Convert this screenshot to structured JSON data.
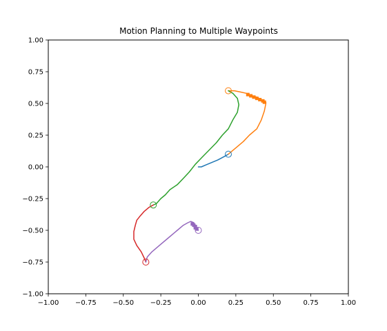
{
  "chart_data": {
    "type": "line",
    "title": "Motion Planning to Multiple Waypoints",
    "xlabel": "",
    "ylabel": "",
    "xlim": [
      -1.0,
      1.0
    ],
    "ylim": [
      -1.0,
      1.0
    ],
    "grid": false,
    "x_ticks": [
      "−1.00",
      "−0.75",
      "−0.50",
      "−0.25",
      "0.00",
      "0.25",
      "0.50",
      "0.75",
      "1.00"
    ],
    "y_ticks": [
      "−1.00",
      "−0.75",
      "−0.50",
      "−0.25",
      "0.00",
      "0.25",
      "0.50",
      "0.75",
      "1.00"
    ],
    "x_tick_values": [
      -1.0,
      -0.75,
      -0.5,
      -0.25,
      0.0,
      0.25,
      0.5,
      0.75,
      1.0
    ],
    "y_tick_values": [
      -1.0,
      -0.75,
      -0.5,
      -0.25,
      0.0,
      0.25,
      0.5,
      0.75,
      1.0
    ],
    "series": [
      {
        "color": "#1f77b4",
        "points": [
          [
            0.0,
            0.0
          ],
          [
            0.02,
            0.0
          ],
          [
            0.05,
            0.015
          ],
          [
            0.09,
            0.035
          ],
          [
            0.13,
            0.055
          ],
          [
            0.17,
            0.08
          ],
          [
            0.2,
            0.1
          ]
        ]
      },
      {
        "color": "#ff7f0e",
        "points": [
          [
            0.2,
            0.1
          ],
          [
            0.25,
            0.15
          ],
          [
            0.3,
            0.2
          ],
          [
            0.34,
            0.25
          ],
          [
            0.39,
            0.3
          ],
          [
            0.42,
            0.37
          ],
          [
            0.44,
            0.44
          ],
          [
            0.45,
            0.5
          ],
          [
            0.45,
            0.51
          ],
          [
            0.44,
            0.52
          ],
          [
            0.42,
            0.53
          ],
          [
            0.39,
            0.55
          ],
          [
            0.36,
            0.56
          ],
          [
            0.32,
            0.58
          ],
          [
            0.28,
            0.59
          ],
          [
            0.24,
            0.6
          ],
          [
            0.2,
            0.6
          ]
        ]
      },
      {
        "color": "#2ca02c",
        "points": [
          [
            0.2,
            0.6
          ],
          [
            0.23,
            0.58
          ],
          [
            0.26,
            0.54
          ],
          [
            0.27,
            0.49
          ],
          [
            0.26,
            0.43
          ],
          [
            0.23,
            0.37
          ],
          [
            0.2,
            0.3
          ],
          [
            0.16,
            0.25
          ],
          [
            0.12,
            0.19
          ],
          [
            0.07,
            0.13
          ],
          [
            0.02,
            0.07
          ],
          [
            -0.02,
            0.02
          ],
          [
            -0.06,
            -0.04
          ],
          [
            -0.1,
            -0.09
          ],
          [
            -0.14,
            -0.14
          ],
          [
            -0.19,
            -0.18
          ],
          [
            -0.22,
            -0.22
          ],
          [
            -0.25,
            -0.25
          ],
          [
            -0.28,
            -0.29
          ],
          [
            -0.3,
            -0.3
          ]
        ]
      },
      {
        "color": "#d62728",
        "points": [
          [
            -0.3,
            -0.3
          ],
          [
            -0.33,
            -0.32
          ],
          [
            -0.36,
            -0.35
          ],
          [
            -0.39,
            -0.39
          ],
          [
            -0.41,
            -0.42
          ],
          [
            -0.42,
            -0.46
          ],
          [
            -0.43,
            -0.51
          ],
          [
            -0.43,
            -0.57
          ],
          [
            -0.41,
            -0.62
          ],
          [
            -0.38,
            -0.67
          ],
          [
            -0.36,
            -0.72
          ],
          [
            -0.35,
            -0.75
          ]
        ]
      },
      {
        "color": "#9467bd",
        "points": [
          [
            -0.35,
            -0.75
          ],
          [
            -0.34,
            -0.71
          ],
          [
            -0.31,
            -0.67
          ],
          [
            -0.26,
            -0.62
          ],
          [
            -0.2,
            -0.56
          ],
          [
            -0.14,
            -0.5
          ],
          [
            -0.1,
            -0.46
          ],
          [
            -0.07,
            -0.44
          ],
          [
            -0.05,
            -0.43
          ],
          [
            -0.03,
            -0.44
          ],
          [
            -0.02,
            -0.46
          ],
          [
            -0.01,
            -0.48
          ],
          [
            0.0,
            -0.5
          ]
        ]
      }
    ],
    "waypoints": [
      {
        "x": 0.2,
        "y": 0.1,
        "color": "#1f77b4"
      },
      {
        "x": 0.2,
        "y": 0.6,
        "color": "#ff7f0e"
      },
      {
        "x": -0.3,
        "y": -0.3,
        "color": "#2ca02c"
      },
      {
        "x": -0.35,
        "y": -0.75,
        "color": "#d62728"
      },
      {
        "x": 0.0,
        "y": -0.5,
        "color": "#9467bd"
      }
    ],
    "clustered_points": [
      {
        "x": 0.33,
        "y": 0.57,
        "color": "#ff7f0e"
      },
      {
        "x": 0.35,
        "y": 0.56,
        "color": "#ff7f0e"
      },
      {
        "x": 0.37,
        "y": 0.55,
        "color": "#ff7f0e"
      },
      {
        "x": 0.39,
        "y": 0.54,
        "color": "#ff7f0e"
      },
      {
        "x": 0.41,
        "y": 0.53,
        "color": "#ff7f0e"
      },
      {
        "x": 0.43,
        "y": 0.52,
        "color": "#ff7f0e"
      },
      {
        "x": 0.44,
        "y": 0.51,
        "color": "#ff7f0e"
      },
      {
        "x": -0.04,
        "y": -0.45,
        "color": "#9467bd"
      },
      {
        "x": -0.03,
        "y": -0.46,
        "color": "#9467bd"
      },
      {
        "x": -0.02,
        "y": -0.47,
        "color": "#9467bd"
      },
      {
        "x": -0.02,
        "y": -0.48,
        "color": "#9467bd"
      },
      {
        "x": -0.01,
        "y": -0.49,
        "color": "#9467bd"
      }
    ]
  }
}
